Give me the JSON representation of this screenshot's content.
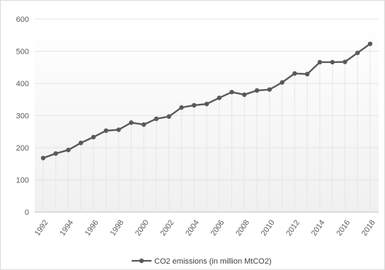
{
  "chart_data": {
    "type": "line",
    "title": "",
    "xlabel": "",
    "ylabel": "",
    "x": [
      1992,
      1993,
      1994,
      1995,
      1996,
      1997,
      1998,
      1999,
      2000,
      2001,
      2002,
      2003,
      2004,
      2005,
      2006,
      2007,
      2008,
      2009,
      2010,
      2011,
      2012,
      2013,
      2014,
      2015,
      2016,
      2017,
      2018
    ],
    "x_tick_labels": [
      "1992",
      "1994",
      "1996",
      "1998",
      "2000",
      "2002",
      "2004",
      "2006",
      "2008",
      "2010",
      "2012",
      "2014",
      "2016",
      "2018"
    ],
    "ylim": [
      0,
      600
    ],
    "y_ticks": [
      0,
      100,
      200,
      300,
      400,
      500,
      600
    ],
    "y_tick_labels": [
      "0",
      "100",
      "200",
      "300",
      "400",
      "500",
      "600"
    ],
    "grid": true,
    "legend_position": "bottom",
    "series": [
      {
        "name": "CO2 emissions (in million MtCO2)",
        "color": "#595959",
        "values": [
          168,
          182,
          193,
          215,
          233,
          253,
          256,
          278,
          272,
          290,
          297,
          325,
          332,
          336,
          355,
          373,
          365,
          378,
          381,
          403,
          431,
          429,
          466,
          466,
          467,
          495,
          523
        ]
      }
    ]
  }
}
